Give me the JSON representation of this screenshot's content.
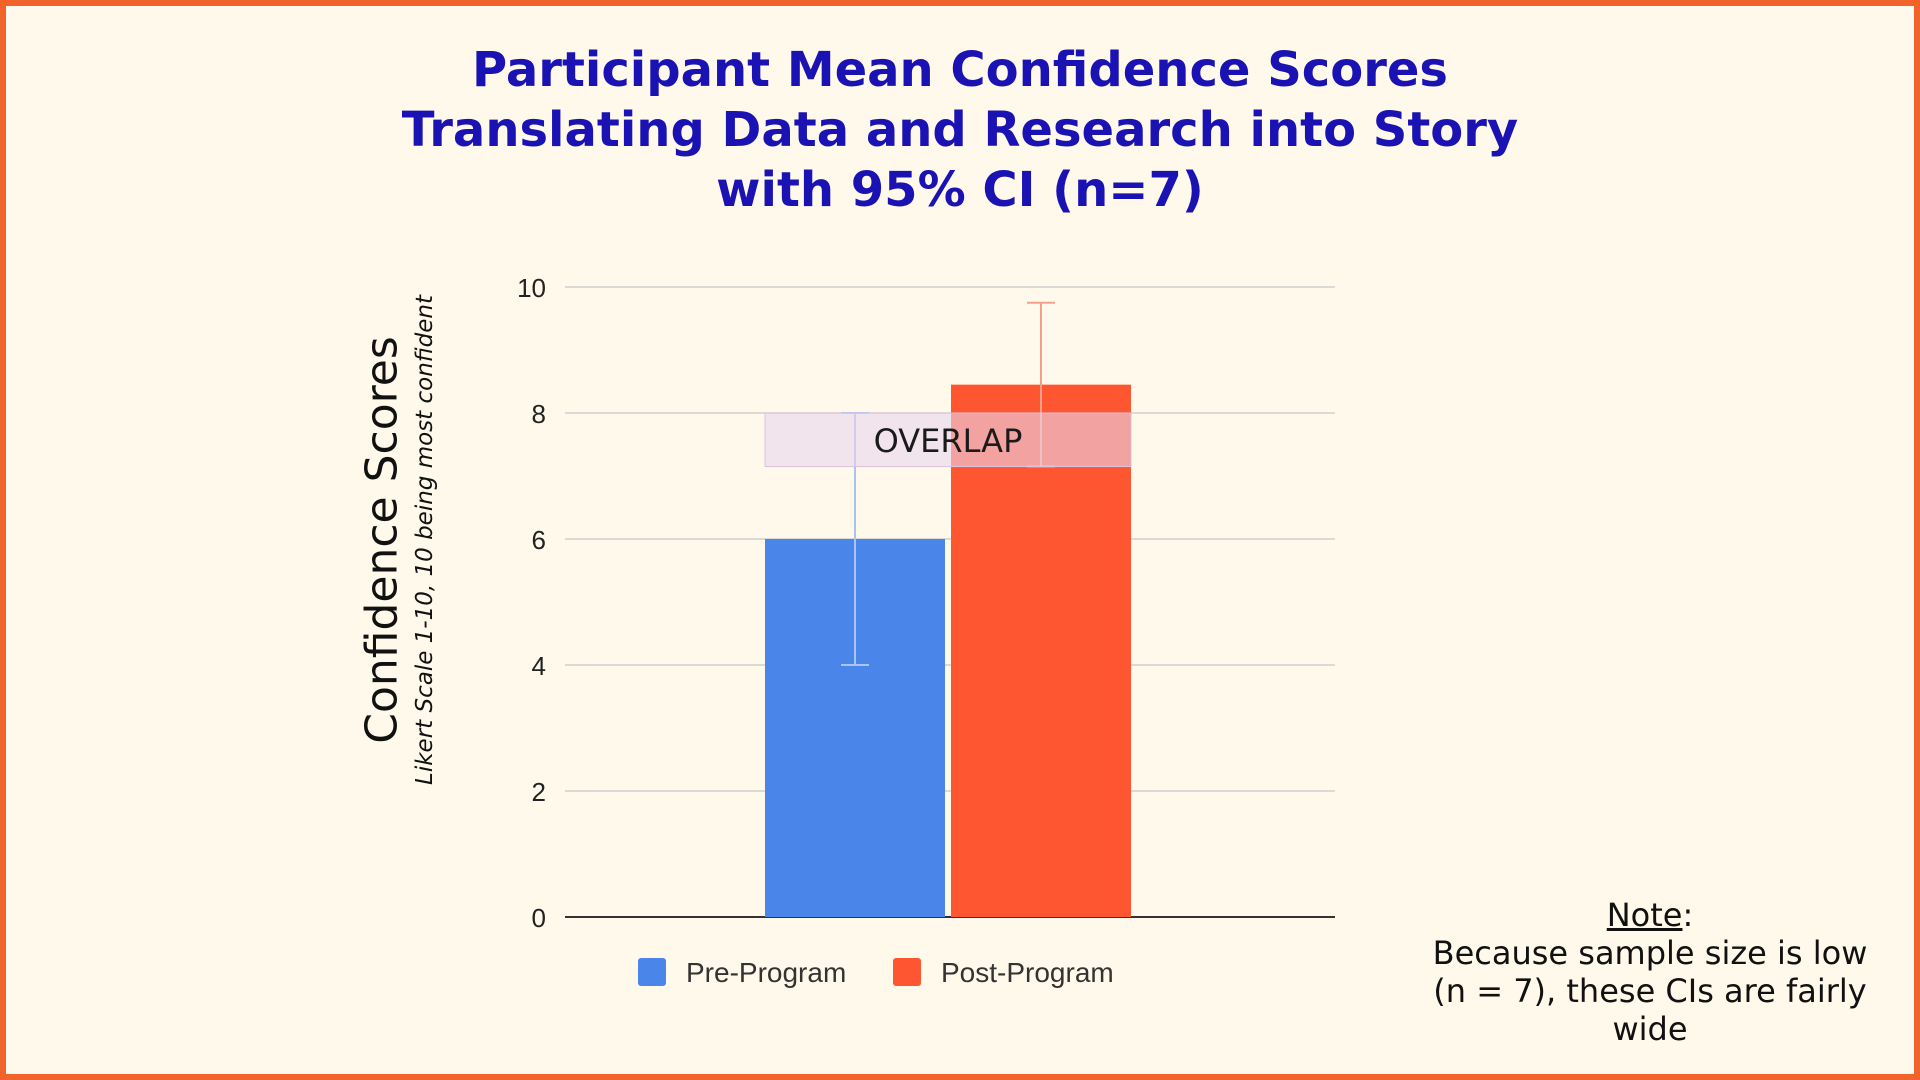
{
  "title_lines": [
    "Participant Mean Confidence Scores",
    "Translating Data and Research into Story",
    "with 95% CI (n=7)"
  ],
  "y_axis": {
    "label": "Confidence Scores",
    "sublabel": "Likert Scale 1-10, 10 being most confident"
  },
  "overlap_label": "OVERLAP",
  "note": {
    "title": "Note",
    "colon": ":",
    "line1": "Because sample size is low",
    "line2": "(n = 7), these CIs are fairly",
    "line3": "wide"
  },
  "colors": {
    "border": "#f2622b",
    "background": "#fef9ea",
    "title": "#1b12b3",
    "pre": "#4a86ea",
    "post": "#fe5630",
    "overlap": "#e7d5ec",
    "grid": "#cfcfcf"
  },
  "chart_data": {
    "type": "bar",
    "title": "Participant Mean Confidence Scores Translating Data and Research into Story with 95% CI (n=7)",
    "xlabel": "",
    "ylabel": "Confidence Scores",
    "ylim": [
      0,
      10
    ],
    "yticks": [
      0,
      2,
      4,
      6,
      8,
      10
    ],
    "grid": true,
    "legend_position": "bottom",
    "series": [
      {
        "name": "Pre-Program",
        "value": 6.0,
        "ci": [
          4.0,
          8.0
        ],
        "color": "#4a86ea"
      },
      {
        "name": "Post-Program",
        "value": 8.45,
        "ci": [
          7.15,
          9.75
        ],
        "color": "#fe5630"
      }
    ],
    "overlap_band": [
      7.15,
      8.0
    ]
  }
}
